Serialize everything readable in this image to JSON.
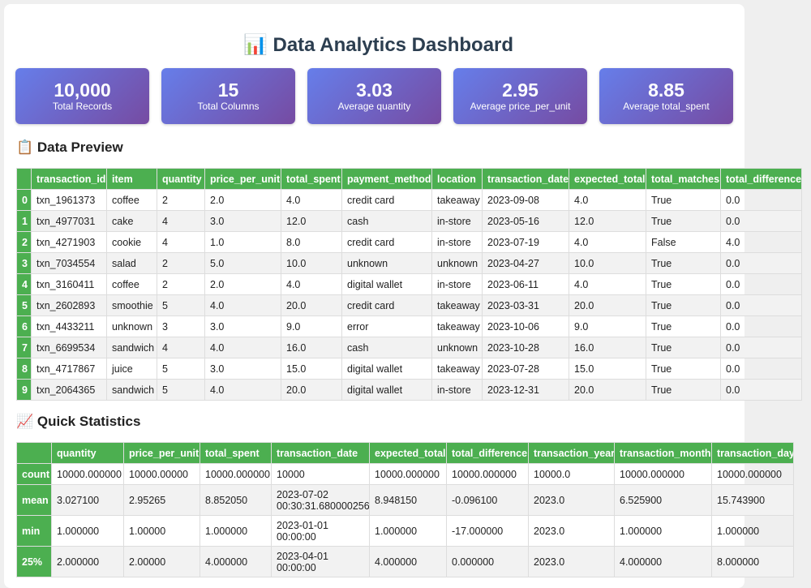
{
  "header": {
    "title": "📊 Data Analytics Dashboard"
  },
  "stats": [
    {
      "value": "10,000",
      "label": "Total Records"
    },
    {
      "value": "15",
      "label": "Total Columns"
    },
    {
      "value": "3.03",
      "label": "Average quantity"
    },
    {
      "value": "2.95",
      "label": "Average price_per_unit"
    },
    {
      "value": "8.85",
      "label": "Average total_spent"
    }
  ],
  "preview": {
    "title": "📋 Data Preview",
    "columns": [
      "transaction_id",
      "item",
      "quantity",
      "price_per_unit",
      "total_spent",
      "payment_method",
      "location",
      "transaction_date",
      "expected_total",
      "total_matches",
      "total_difference"
    ],
    "rows": [
      {
        "index": "0",
        "cells": [
          "txn_1961373",
          "coffee",
          "2",
          "2.0",
          "4.0",
          "credit card",
          "takeaway",
          "2023-09-08",
          "4.0",
          "True",
          "0.0"
        ]
      },
      {
        "index": "1",
        "cells": [
          "txn_4977031",
          "cake",
          "4",
          "3.0",
          "12.0",
          "cash",
          "in-store",
          "2023-05-16",
          "12.0",
          "True",
          "0.0"
        ]
      },
      {
        "index": "2",
        "cells": [
          "txn_4271903",
          "cookie",
          "4",
          "1.0",
          "8.0",
          "credit card",
          "in-store",
          "2023-07-19",
          "4.0",
          "False",
          "4.0"
        ]
      },
      {
        "index": "3",
        "cells": [
          "txn_7034554",
          "salad",
          "2",
          "5.0",
          "10.0",
          "unknown",
          "unknown",
          "2023-04-27",
          "10.0",
          "True",
          "0.0"
        ]
      },
      {
        "index": "4",
        "cells": [
          "txn_3160411",
          "coffee",
          "2",
          "2.0",
          "4.0",
          "digital wallet",
          "in-store",
          "2023-06-11",
          "4.0",
          "True",
          "0.0"
        ]
      },
      {
        "index": "5",
        "cells": [
          "txn_2602893",
          "smoothie",
          "5",
          "4.0",
          "20.0",
          "credit card",
          "takeaway",
          "2023-03-31",
          "20.0",
          "True",
          "0.0"
        ]
      },
      {
        "index": "6",
        "cells": [
          "txn_4433211",
          "unknown",
          "3",
          "3.0",
          "9.0",
          "error",
          "takeaway",
          "2023-10-06",
          "9.0",
          "True",
          "0.0"
        ]
      },
      {
        "index": "7",
        "cells": [
          "txn_6699534",
          "sandwich",
          "4",
          "4.0",
          "16.0",
          "cash",
          "unknown",
          "2023-10-28",
          "16.0",
          "True",
          "0.0"
        ]
      },
      {
        "index": "8",
        "cells": [
          "txn_4717867",
          "juice",
          "5",
          "3.0",
          "15.0",
          "digital wallet",
          "takeaway",
          "2023-07-28",
          "15.0",
          "True",
          "0.0"
        ]
      },
      {
        "index": "9",
        "cells": [
          "txn_2064365",
          "sandwich",
          "5",
          "4.0",
          "20.0",
          "digital wallet",
          "in-store",
          "2023-12-31",
          "20.0",
          "True",
          "0.0"
        ]
      }
    ]
  },
  "statistics": {
    "title": "📈 Quick Statistics",
    "columns": [
      "quantity",
      "price_per_unit",
      "total_spent",
      "transaction_date",
      "expected_total",
      "total_difference",
      "transaction_year",
      "transaction_month",
      "transaction_day"
    ],
    "rows": [
      {
        "index": "count",
        "cells": [
          "10000.000000",
          "10000.00000",
          "10000.000000",
          "10000",
          "10000.000000",
          "10000.000000",
          "10000.0",
          "10000.000000",
          "10000.000000"
        ]
      },
      {
        "index": "mean",
        "cells": [
          "3.027100",
          "2.95265",
          "8.852050",
          "2023-07-02 00:30:31.680000256",
          "8.948150",
          "-0.096100",
          "2023.0",
          "6.525900",
          "15.743900"
        ]
      },
      {
        "index": "min",
        "cells": [
          "1.000000",
          "1.00000",
          "1.000000",
          "2023-01-01 00:00:00",
          "1.000000",
          "-17.000000",
          "2023.0",
          "1.000000",
          "1.000000"
        ]
      },
      {
        "index": "25%",
        "cells": [
          "2.000000",
          "2.00000",
          "4.000000",
          "2023-04-01 00:00:00",
          "4.000000",
          "0.000000",
          "2023.0",
          "4.000000",
          "8.000000"
        ]
      }
    ]
  }
}
